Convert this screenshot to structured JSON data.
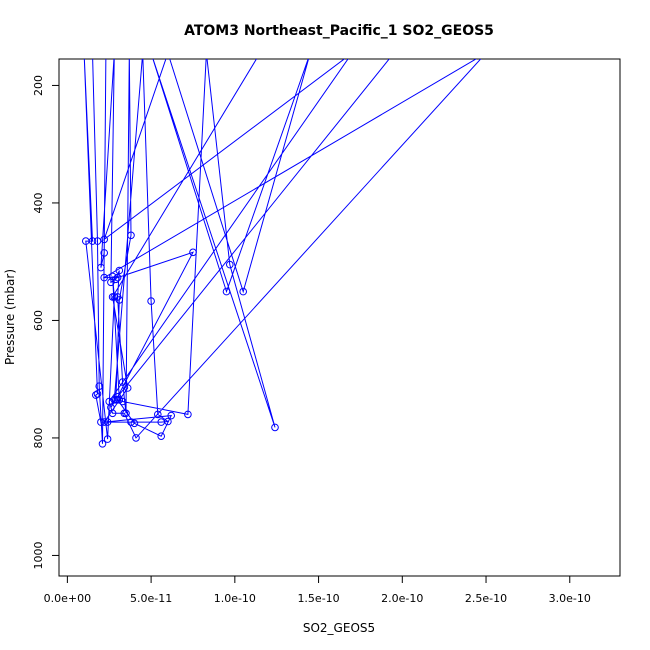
{
  "chart_data": {
    "type": "scatter",
    "title": "ATOM3 Northeast_Pacific_1 SO2_GEOS5",
    "xlabel": "SO2_GEOS5",
    "ylabel": "Pressure (mbar)",
    "xlim": [
      -5e-12,
      3.3e-10
    ],
    "ylim": [
      1035,
      155
    ],
    "y_inverted": true,
    "x_ticks": [
      0,
      5e-11,
      1e-10,
      1.5e-10,
      2e-10,
      2.5e-10,
      3e-10
    ],
    "x_tick_labels": [
      "0.0e+00",
      "5.0e-11",
      "1.0e-10",
      "1.5e-10",
      "2.0e-10",
      "2.5e-10",
      "3.0e-10"
    ],
    "y_ticks": [
      200,
      400,
      600,
      800,
      1000
    ],
    "y_tick_labels": [
      "200",
      "400",
      "600",
      "800",
      "1000"
    ],
    "grid": false,
    "line_color": "#0000ff",
    "series": [
      {
        "points": [
          [
            1.5e-11,
            145
          ],
          [
            1.8e-11,
            465
          ],
          [
            1.9e-11,
            712
          ],
          [
            2.1e-11,
            810
          ],
          [
            2.3e-11,
            145
          ],
          [
            2.2e-11,
            485
          ],
          [
            2e-11,
            510
          ],
          [
            2.8e-11,
            145
          ],
          [
            2.6e-11,
            535
          ],
          [
            2.9e-11,
            530
          ],
          [
            3.1e-11,
            515
          ],
          [
            3e-11,
            560
          ],
          [
            3.3e-11,
            705
          ],
          [
            3.5e-11,
            758
          ],
          [
            3.7e-11,
            145
          ],
          [
            3.8e-11,
            455
          ],
          [
            3.1e-11,
            565
          ],
          [
            2.9e-11,
            735
          ],
          [
            2.6e-11,
            748
          ],
          [
            2.8e-11,
            735
          ],
          [
            4.5e-11,
            145
          ],
          [
            5e-11,
            567
          ],
          [
            5.4e-11,
            760
          ],
          [
            6e-11,
            772
          ],
          [
            5.6e-11,
            773
          ],
          [
            3.8e-11,
            773
          ],
          [
            2.4e-11,
            773
          ],
          [
            2e-11,
            773
          ],
          [
            1.7e-11,
            727
          ],
          [
            1.8e-11,
            725
          ],
          [
            1e-11,
            145
          ],
          [
            1.5e-11,
            465
          ],
          [
            1.1e-11,
            465
          ],
          [
            2.4e-11,
            802
          ],
          [
            2.8e-11,
            560
          ],
          [
            2.7e-11,
            525
          ],
          [
            3.1e-11,
            735
          ],
          [
            3.3e-11,
            738
          ],
          [
            7.2e-11,
            760
          ],
          [
            8.3e-11,
            145
          ],
          [
            9.7e-11,
            505
          ],
          [
            1.24e-10,
            782
          ],
          [
            5e-11,
            145
          ],
          [
            9.5e-11,
            551
          ],
          [
            1.45e-10,
            145
          ],
          [
            1.05e-10,
            551
          ],
          [
            6e-11,
            145
          ],
          [
            2.2e-11,
            462
          ],
          [
            1.7e-10,
            145
          ],
          [
            2.5e-11,
            738
          ],
          [
            2.7e-11,
            758
          ],
          [
            3.4e-11,
            758
          ],
          [
            4.1e-11,
            800
          ],
          [
            2.5e-10,
            145
          ],
          [
            2.2e-11,
            527
          ],
          [
            3e-11,
            527
          ],
          [
            7.5e-11,
            484
          ],
          [
            3e-11,
            730
          ],
          [
            1.95e-10,
            145
          ],
          [
            1.55e-10,
            145
          ],
          [
            1.3e-10,
            145
          ],
          [
            1.15e-10,
            145
          ],
          [
            2.7e-11,
            560
          ],
          [
            3.6e-11,
            715
          ],
          [
            2.2e-11,
            773
          ],
          [
            6.2e-11,
            762
          ],
          [
            5.6e-11,
            797
          ],
          [
            4e-11,
            775
          ],
          [
            3e-11,
            735
          ]
        ],
        "values": []
      }
    ]
  }
}
